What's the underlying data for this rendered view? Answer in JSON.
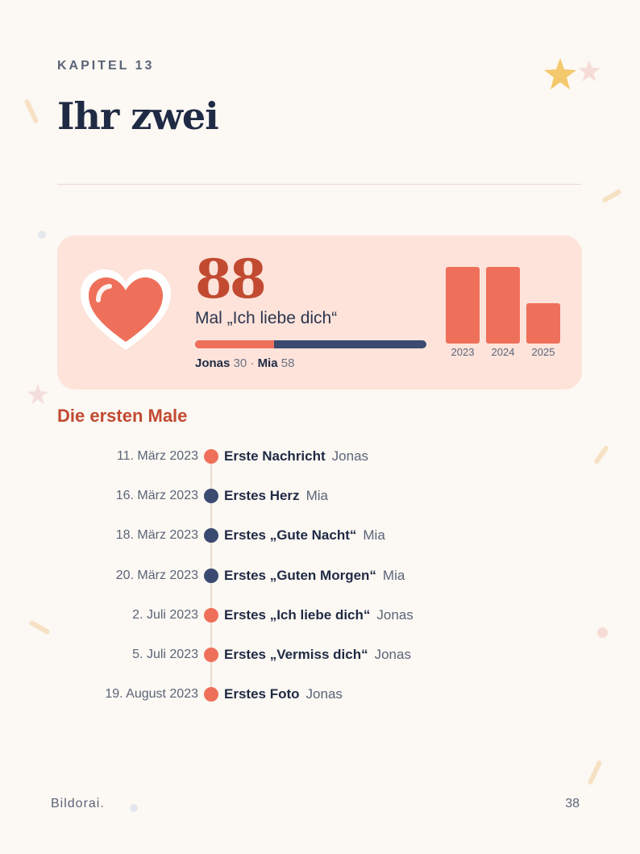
{
  "chapter": "KAPITEL 13",
  "title": "Ihr zwei",
  "stat": {
    "count": "88",
    "caption": "Mal „Ich liebe dich“",
    "split": {
      "a_name": "Jonas",
      "a_value": "30",
      "separator": "·",
      "b_name": "Mia",
      "b_value": "58",
      "a_fraction": 0.341
    }
  },
  "chart_data": {
    "type": "bar",
    "categories": [
      "2023",
      "2024",
      "2025"
    ],
    "values": [
      95,
      95,
      50
    ],
    "ylim": [
      0,
      95
    ],
    "title": "",
    "xlabel": "",
    "ylabel": "",
    "color": "#ef705a"
  },
  "section_title": "Die ersten Male",
  "timeline": [
    {
      "date": "11. März 2023",
      "event": "Erste Nachricht",
      "who": "Jonas",
      "color": "#ef705a"
    },
    {
      "date": "16. März 2023",
      "event": "Erstes Herz",
      "who": "Mia",
      "color": "#3a4a70"
    },
    {
      "date": "18. März 2023",
      "event": "Erstes „Gute Nacht“",
      "who": "Mia",
      "color": "#3a4a70"
    },
    {
      "date": "20. März 2023",
      "event": "Erstes „Guten Morgen“",
      "who": "Mia",
      "color": "#3a4a70"
    },
    {
      "date": "2. Juli 2023",
      "event": "Erstes „Ich liebe dich“",
      "who": "Jonas",
      "color": "#ef705a"
    },
    {
      "date": "5. Juli 2023",
      "event": "Erstes „Vermiss dich“",
      "who": "Jonas",
      "color": "#ef705a"
    },
    {
      "date": "19. August 2023",
      "event": "Erstes Foto",
      "who": "Jonas",
      "color": "#ef705a"
    }
  ],
  "footer": {
    "brand": "Bildorai.",
    "page": "38"
  },
  "colors": {
    "accent": "#c24a31",
    "coral": "#ef705a",
    "navy": "#3a4a70"
  },
  "icons": {
    "heart": "heart-icon",
    "stars": "star-icon"
  }
}
